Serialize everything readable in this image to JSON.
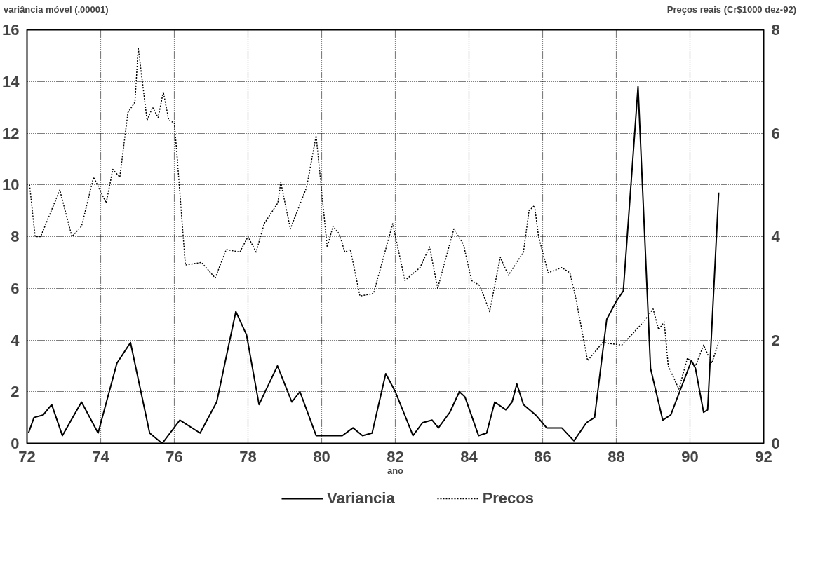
{
  "chart_data": {
    "type": "line",
    "xlabel": "ano",
    "ylabel": "variância móvel (.00001)",
    "y2label": "Preços reais (Cr$1000 dez-92)",
    "xlim": [
      72,
      92
    ],
    "xticks": [
      72,
      74,
      76,
      78,
      80,
      82,
      84,
      86,
      88,
      90,
      92
    ],
    "ylim": [
      0,
      16
    ],
    "yticks": [
      0,
      2,
      4,
      6,
      8,
      10,
      12,
      14,
      16
    ],
    "y2lim": [
      0,
      8
    ],
    "y2ticks": [
      0,
      2,
      4,
      6,
      8
    ],
    "grid": true,
    "legend": "bottom",
    "series": [
      {
        "name": "Variancia",
        "color": "#000000",
        "line_style": "solid",
        "x": [
          72.04,
          72.19,
          72.44,
          72.67,
          72.96,
          73.48,
          73.93,
          74.44,
          74.81,
          75.33,
          75.67,
          76.15,
          76.7,
          77.15,
          77.67,
          77.96,
          78.3,
          78.8,
          79.19,
          79.41,
          79.85,
          80.37,
          80.56,
          80.85,
          81.11,
          81.37,
          81.74,
          82.0,
          82.48,
          82.74,
          83.0,
          83.17,
          83.48,
          83.74,
          83.89,
          84.26,
          84.48,
          84.7,
          85.0,
          85.17,
          85.3,
          85.48,
          85.81,
          86.11,
          86.52,
          86.85,
          87.19,
          87.41,
          87.74,
          88.0,
          88.19,
          88.59,
          88.93,
          89.26,
          89.48,
          90.04,
          90.15,
          90.37,
          90.48,
          90.78
        ],
        "values": [
          0.4,
          1.0,
          1.1,
          1.5,
          0.3,
          1.6,
          0.4,
          3.1,
          3.9,
          0.4,
          0.0,
          0.9,
          0.4,
          1.6,
          5.1,
          4.2,
          1.5,
          3.0,
          1.6,
          2.0,
          0.3,
          0.3,
          0.3,
          0.6,
          0.3,
          0.4,
          2.7,
          2.0,
          0.3,
          0.8,
          0.9,
          0.6,
          1.2,
          2.0,
          1.8,
          0.3,
          0.4,
          1.6,
          1.3,
          1.6,
          2.3,
          1.5,
          1.1,
          0.6,
          0.6,
          0.1,
          0.8,
          1.0,
          4.8,
          5.5,
          5.9,
          13.8,
          2.9,
          0.9,
          1.1,
          3.2,
          2.9,
          1.2,
          1.3,
          9.7
        ]
      },
      {
        "name": "Precos",
        "color": "#000000",
        "line_style": "dotted",
        "axis": "y2",
        "x": [
          72.07,
          72.22,
          72.37,
          72.89,
          73.22,
          73.48,
          73.81,
          74.15,
          74.33,
          74.52,
          74.74,
          74.93,
          75.02,
          75.26,
          75.41,
          75.56,
          75.7,
          75.85,
          76.0,
          76.07,
          76.3,
          76.74,
          77.11,
          77.41,
          77.78,
          78.0,
          78.22,
          78.44,
          78.81,
          78.89,
          79.15,
          79.59,
          79.85,
          80.15,
          80.31,
          80.48,
          80.63,
          80.78,
          81.04,
          81.41,
          81.93,
          82.26,
          82.67,
          82.93,
          83.15,
          83.59,
          83.85,
          84.07,
          84.3,
          84.56,
          84.85,
          85.07,
          85.48,
          85.63,
          85.78,
          85.89,
          86.15,
          86.52,
          86.74,
          86.89,
          87.22,
          87.63,
          88.15,
          88.74,
          89.0,
          89.15,
          89.3,
          89.41,
          89.7,
          89.93,
          90.15,
          90.37,
          90.59,
          90.78
        ],
        "values": [
          5.0,
          4.0,
          4.0,
          4.9,
          4.0,
          4.2,
          5.15,
          4.65,
          5.3,
          5.15,
          6.4,
          6.6,
          7.65,
          6.25,
          6.5,
          6.3,
          6.8,
          6.25,
          6.2,
          5.6,
          3.45,
          3.5,
          3.2,
          3.75,
          3.7,
          4.0,
          3.7,
          4.25,
          4.65,
          5.05,
          4.15,
          4.95,
          5.95,
          3.8,
          4.2,
          4.05,
          3.7,
          3.75,
          2.85,
          2.9,
          4.25,
          3.15,
          3.4,
          3.8,
          3.0,
          4.15,
          3.85,
          3.15,
          3.05,
          2.55,
          3.6,
          3.25,
          3.7,
          4.5,
          4.6,
          4.0,
          3.3,
          3.4,
          3.3,
          2.85,
          1.6,
          1.95,
          1.9,
          2.35,
          2.6,
          2.2,
          2.35,
          1.5,
          1.05,
          1.65,
          1.5,
          1.9,
          1.55,
          1.95
        ]
      }
    ]
  }
}
